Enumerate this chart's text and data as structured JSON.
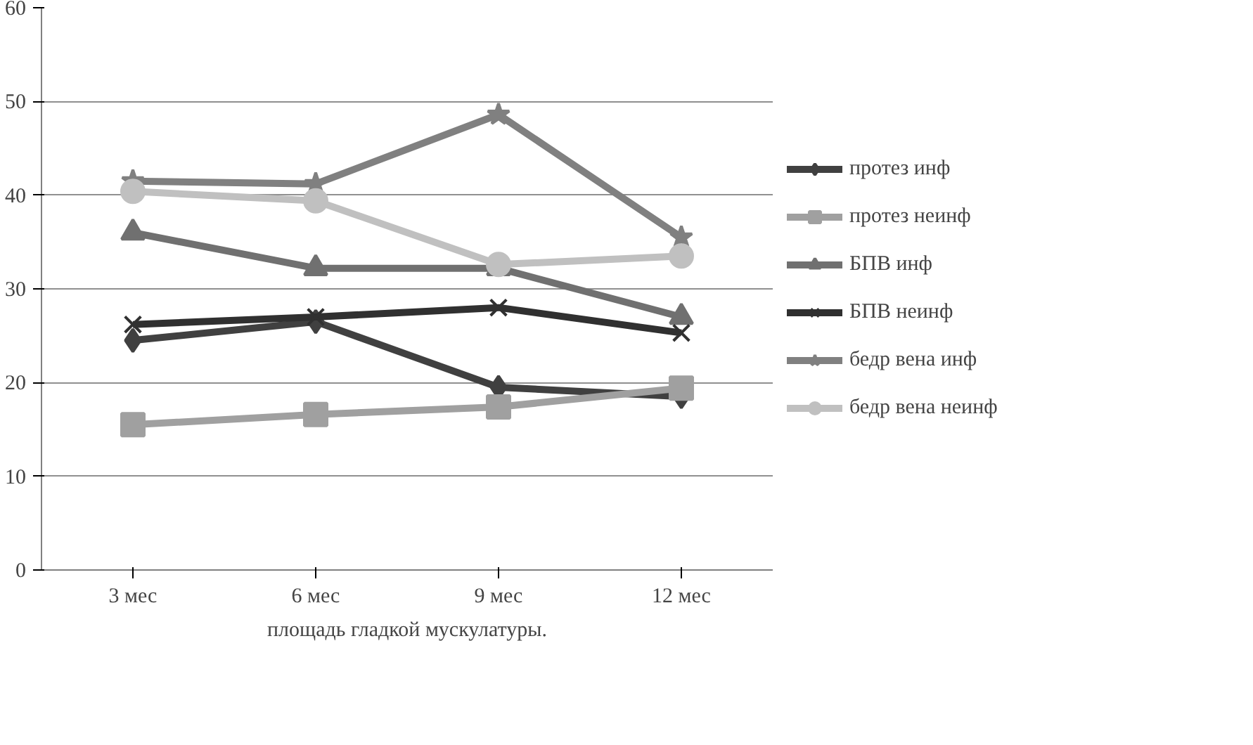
{
  "chart_data": {
    "type": "line",
    "categories": [
      "3 мес",
      "6 мес",
      "9 мес",
      "12 мес"
    ],
    "xlabel": "площадь гладкой мускулатуры.",
    "ylim": [
      0,
      60
    ],
    "yticks": [
      0,
      10,
      20,
      30,
      40,
      50,
      60
    ],
    "grid": "y",
    "legend": "right",
    "series": [
      {
        "name": "протез инф",
        "color": "#404040",
        "marker": "diamond",
        "values": [
          24.5,
          26.5,
          19.5,
          18.5
        ]
      },
      {
        "name": "протез неинф",
        "color": "#a0a0a0",
        "marker": "square",
        "values": [
          15.5,
          16.6,
          17.4,
          19.4
        ]
      },
      {
        "name": "БПВ инф",
        "color": "#707070",
        "marker": "triangle",
        "values": [
          36,
          32.2,
          32.2,
          27
        ]
      },
      {
        "name": "БПВ неинф",
        "color": "#303030",
        "marker": "cross",
        "values": [
          26.2,
          27,
          28,
          25.3
        ]
      },
      {
        "name": "бедр вена инф",
        "color": "#808080",
        "marker": "star",
        "values": [
          41.5,
          41.2,
          48.6,
          35.5
        ]
      },
      {
        "name": "бедр вена неинф",
        "color": "#c0c0c0",
        "marker": "circle",
        "values": [
          40.4,
          39.4,
          32.6,
          33.5
        ]
      }
    ]
  }
}
